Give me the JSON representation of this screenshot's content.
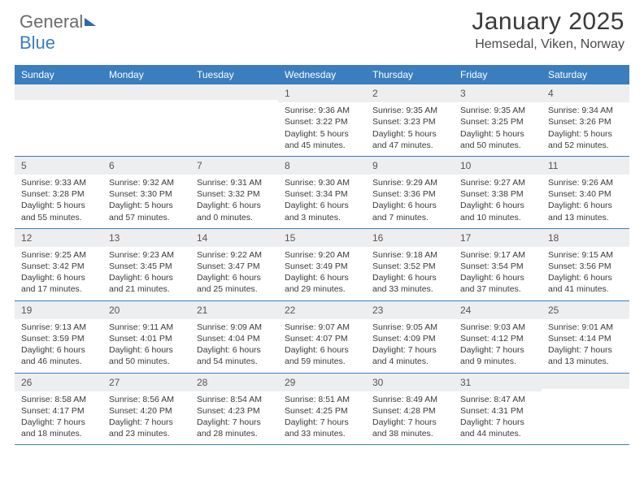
{
  "logo": {
    "part1": "General",
    "part2": "Blue"
  },
  "title": "January 2025",
  "location": "Hemsedal, Viken, Norway",
  "colors": {
    "header_bg": "#3a7ebf",
    "daynum_bg": "#edeef0",
    "week_border": "#3a7ebf",
    "text": "#3a3a3a",
    "logo_gray": "#6b6b6b",
    "logo_blue": "#3a7ebf"
  },
  "dow": [
    "Sunday",
    "Monday",
    "Tuesday",
    "Wednesday",
    "Thursday",
    "Friday",
    "Saturday"
  ],
  "weeks": [
    [
      null,
      null,
      null,
      {
        "n": "1",
        "sr": "9:36 AM",
        "ss": "3:22 PM",
        "dl": "5 hours and 45 minutes."
      },
      {
        "n": "2",
        "sr": "9:35 AM",
        "ss": "3:23 PM",
        "dl": "5 hours and 47 minutes."
      },
      {
        "n": "3",
        "sr": "9:35 AM",
        "ss": "3:25 PM",
        "dl": "5 hours and 50 minutes."
      },
      {
        "n": "4",
        "sr": "9:34 AM",
        "ss": "3:26 PM",
        "dl": "5 hours and 52 minutes."
      }
    ],
    [
      {
        "n": "5",
        "sr": "9:33 AM",
        "ss": "3:28 PM",
        "dl": "5 hours and 55 minutes."
      },
      {
        "n": "6",
        "sr": "9:32 AM",
        "ss": "3:30 PM",
        "dl": "5 hours and 57 minutes."
      },
      {
        "n": "7",
        "sr": "9:31 AM",
        "ss": "3:32 PM",
        "dl": "6 hours and 0 minutes."
      },
      {
        "n": "8",
        "sr": "9:30 AM",
        "ss": "3:34 PM",
        "dl": "6 hours and 3 minutes."
      },
      {
        "n": "9",
        "sr": "9:29 AM",
        "ss": "3:36 PM",
        "dl": "6 hours and 7 minutes."
      },
      {
        "n": "10",
        "sr": "9:27 AM",
        "ss": "3:38 PM",
        "dl": "6 hours and 10 minutes."
      },
      {
        "n": "11",
        "sr": "9:26 AM",
        "ss": "3:40 PM",
        "dl": "6 hours and 13 minutes."
      }
    ],
    [
      {
        "n": "12",
        "sr": "9:25 AM",
        "ss": "3:42 PM",
        "dl": "6 hours and 17 minutes."
      },
      {
        "n": "13",
        "sr": "9:23 AM",
        "ss": "3:45 PM",
        "dl": "6 hours and 21 minutes."
      },
      {
        "n": "14",
        "sr": "9:22 AM",
        "ss": "3:47 PM",
        "dl": "6 hours and 25 minutes."
      },
      {
        "n": "15",
        "sr": "9:20 AM",
        "ss": "3:49 PM",
        "dl": "6 hours and 29 minutes."
      },
      {
        "n": "16",
        "sr": "9:18 AM",
        "ss": "3:52 PM",
        "dl": "6 hours and 33 minutes."
      },
      {
        "n": "17",
        "sr": "9:17 AM",
        "ss": "3:54 PM",
        "dl": "6 hours and 37 minutes."
      },
      {
        "n": "18",
        "sr": "9:15 AM",
        "ss": "3:56 PM",
        "dl": "6 hours and 41 minutes."
      }
    ],
    [
      {
        "n": "19",
        "sr": "9:13 AM",
        "ss": "3:59 PM",
        "dl": "6 hours and 46 minutes."
      },
      {
        "n": "20",
        "sr": "9:11 AM",
        "ss": "4:01 PM",
        "dl": "6 hours and 50 minutes."
      },
      {
        "n": "21",
        "sr": "9:09 AM",
        "ss": "4:04 PM",
        "dl": "6 hours and 54 minutes."
      },
      {
        "n": "22",
        "sr": "9:07 AM",
        "ss": "4:07 PM",
        "dl": "6 hours and 59 minutes."
      },
      {
        "n": "23",
        "sr": "9:05 AM",
        "ss": "4:09 PM",
        "dl": "7 hours and 4 minutes."
      },
      {
        "n": "24",
        "sr": "9:03 AM",
        "ss": "4:12 PM",
        "dl": "7 hours and 9 minutes."
      },
      {
        "n": "25",
        "sr": "9:01 AM",
        "ss": "4:14 PM",
        "dl": "7 hours and 13 minutes."
      }
    ],
    [
      {
        "n": "26",
        "sr": "8:58 AM",
        "ss": "4:17 PM",
        "dl": "7 hours and 18 minutes."
      },
      {
        "n": "27",
        "sr": "8:56 AM",
        "ss": "4:20 PM",
        "dl": "7 hours and 23 minutes."
      },
      {
        "n": "28",
        "sr": "8:54 AM",
        "ss": "4:23 PM",
        "dl": "7 hours and 28 minutes."
      },
      {
        "n": "29",
        "sr": "8:51 AM",
        "ss": "4:25 PM",
        "dl": "7 hours and 33 minutes."
      },
      {
        "n": "30",
        "sr": "8:49 AM",
        "ss": "4:28 PM",
        "dl": "7 hours and 38 minutes."
      },
      {
        "n": "31",
        "sr": "8:47 AM",
        "ss": "4:31 PM",
        "dl": "7 hours and 44 minutes."
      },
      null
    ]
  ],
  "labels": {
    "sunrise": "Sunrise:",
    "sunset": "Sunset:",
    "daylight": "Daylight:"
  }
}
